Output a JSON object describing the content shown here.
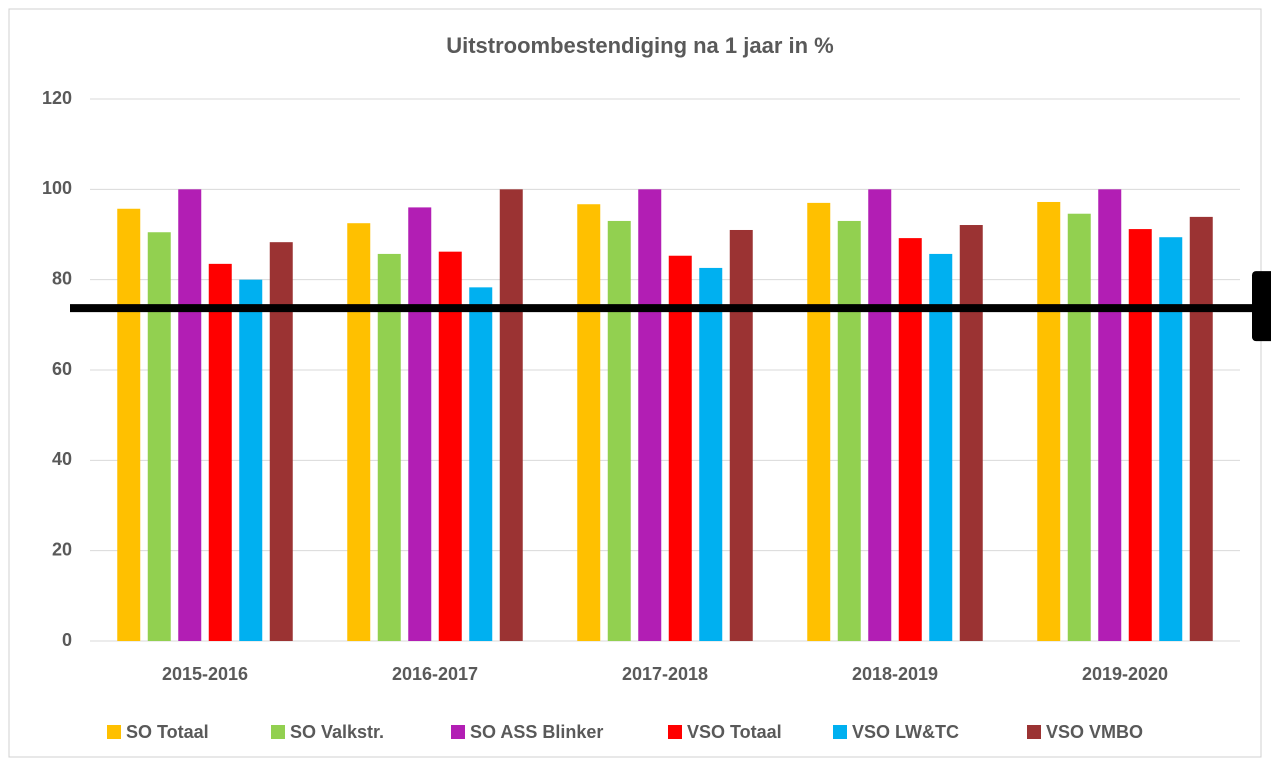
{
  "chart_data": {
    "type": "bar",
    "title": "Uitstroombestendiging na 1 jaar in %",
    "categories": [
      "2015-2016",
      "2016-2017",
      "2017-2018",
      "2018-2019",
      "2019-2020"
    ],
    "series": [
      {
        "name": "SO Totaal",
        "color": "#FFC000",
        "values": [
          95.7,
          92.5,
          96.7,
          97.0,
          97.2
        ]
      },
      {
        "name": "SO Valkstr.",
        "color": "#92D050",
        "values": [
          90.5,
          85.7,
          93.0,
          93.0,
          94.6
        ]
      },
      {
        "name": "SO ASS Blinker",
        "color": "#B21EB4",
        "values": [
          100,
          96,
          100,
          100,
          100
        ]
      },
      {
        "name": "VSO Totaal",
        "color": "#FF0000",
        "values": [
          83.5,
          86.2,
          85.3,
          89.2,
          91.2
        ]
      },
      {
        "name": "VSO LW&TC",
        "color": "#00B0F0",
        "values": [
          80,
          78.3,
          82.6,
          85.7,
          89.4
        ]
      },
      {
        "name": "VSO VMBO",
        "color": "#9B3333",
        "values": [
          88.3,
          100,
          91,
          92.1,
          93.9
        ]
      }
    ],
    "reference_line": 73.7,
    "ylim": [
      0,
      120
    ],
    "yticks": [
      0,
      20,
      40,
      60,
      80,
      100,
      120
    ],
    "grid": true
  }
}
